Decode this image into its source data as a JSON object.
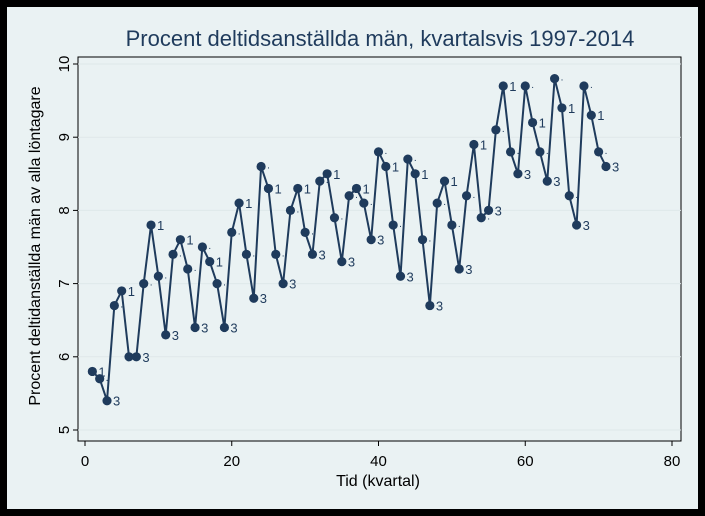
{
  "chart_data": {
    "type": "line",
    "title": "Procent deltidsanställda män, kvartalsvis 1997-2014",
    "xlabel": "Tid (kvartal)",
    "ylabel": "Procent deltidanställda män av alla löntagare",
    "xlim": [
      0,
      80
    ],
    "ylim": [
      5,
      10
    ],
    "xticks": [
      "0",
      "20",
      "40",
      "60",
      "80"
    ],
    "yticks": [
      "5",
      "6",
      "7",
      "8",
      "9",
      "10"
    ],
    "grid": "horizontal",
    "colors": {
      "background": "#eaf2f3",
      "outer": "#000000",
      "series": "#1f3b5c",
      "grid": "#dfe8ea"
    },
    "series": [
      {
        "x": [
          1,
          2,
          3,
          4,
          5,
          6,
          7,
          8,
          9,
          10,
          11,
          12,
          13,
          14,
          15,
          16,
          17,
          18,
          19,
          20,
          21,
          22,
          23,
          24,
          25,
          26,
          27,
          28,
          29,
          30,
          31,
          32,
          33,
          34,
          35,
          36,
          37,
          38,
          39,
          40,
          41,
          42,
          43,
          44,
          45,
          46,
          47,
          48,
          49,
          50,
          51,
          52,
          53,
          54,
          55,
          56,
          57,
          58,
          59,
          60,
          61,
          62,
          63,
          64,
          65,
          66,
          67,
          68,
          69,
          70,
          71
        ],
        "values": [
          5.8,
          5.7,
          5.4,
          6.7,
          6.9,
          6.0,
          6.0,
          7.0,
          7.8,
          7.1,
          6.3,
          7.4,
          7.6,
          7.2,
          6.4,
          7.5,
          7.3,
          7.0,
          6.4,
          7.7,
          8.1,
          7.4,
          6.8,
          8.6,
          8.3,
          7.4,
          7.0,
          8.0,
          8.3,
          7.7,
          7.4,
          8.4,
          8.5,
          7.9,
          7.3,
          8.2,
          8.3,
          8.1,
          7.6,
          8.8,
          8.6,
          7.8,
          7.1,
          8.7,
          8.5,
          7.6,
          6.7,
          8.1,
          8.4,
          7.8,
          7.2,
          8.2,
          8.9,
          7.9,
          8.0,
          9.1,
          9.7,
          8.8,
          8.5,
          9.7,
          9.2,
          8.8,
          8.4,
          9.8,
          9.4,
          8.2,
          7.8,
          9.7,
          9.3,
          8.8,
          8.6
        ],
        "marker_labels": [
          "1",
          ".",
          "3",
          ".",
          "1",
          ".",
          "3",
          ".",
          "1",
          ".",
          "3",
          ".",
          "1",
          ".",
          "3",
          ".",
          "1",
          ".",
          "3",
          ".",
          "1",
          ".",
          "3",
          ".",
          "1",
          ".",
          "3",
          ".",
          "1",
          ".",
          "3",
          ".",
          "1",
          ".",
          "3",
          ".",
          "1",
          ".",
          "3",
          ".",
          "1",
          ".",
          "3",
          ".",
          "1",
          ".",
          "3",
          ".",
          "1",
          ".",
          "3",
          ".",
          "1",
          ".",
          "3",
          ".",
          "1",
          ".",
          "3",
          ".",
          "1",
          ".",
          "3",
          ".",
          "1",
          ".",
          "3",
          ".",
          "1",
          ".",
          "3"
        ]
      }
    ]
  }
}
